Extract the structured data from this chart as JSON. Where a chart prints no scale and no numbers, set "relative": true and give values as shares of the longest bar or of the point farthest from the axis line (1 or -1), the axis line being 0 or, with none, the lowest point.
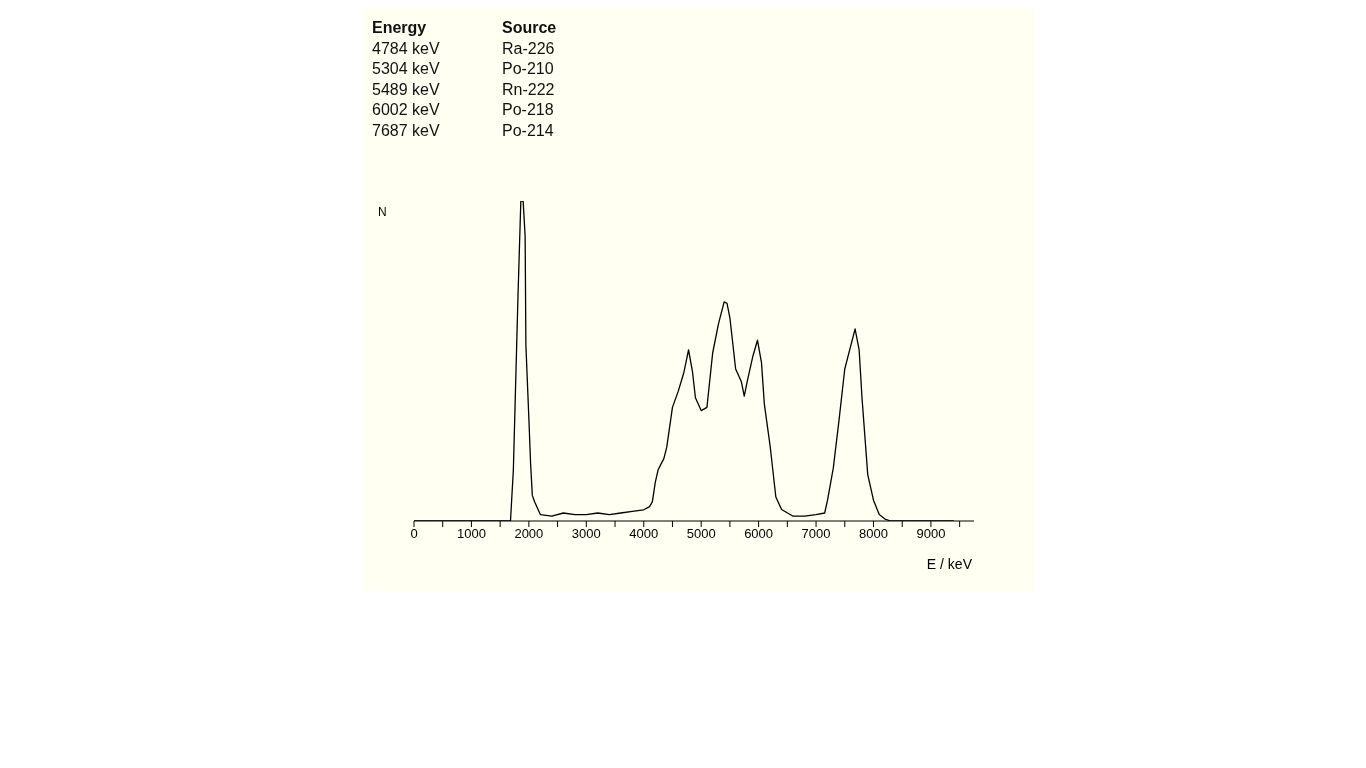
{
  "chart_data": {
    "type": "line",
    "xlabel": "E / keV",
    "ylabel": "N",
    "relative": true,
    "grid": false,
    "legend": false,
    "marker": "none",
    "line_style": "solid",
    "annotations": [
      "Energy",
      "Source",
      "4784 keV",
      "Ra-226",
      "5304 keV",
      "Po-210",
      "5489 keV",
      "Rn-222",
      "6002 keV",
      "Po-218",
      "7687 keV",
      "Po-214"
    ],
    "xlim": [
      0,
      9750
    ],
    "xticks": [
      0,
      {
        "value": 500,
        "label": null
      },
      1000,
      {
        "value": 1500,
        "label": null
      },
      2000,
      {
        "value": 2500,
        "label": null
      },
      3000,
      {
        "value": 3500,
        "label": null
      },
      4000,
      {
        "value": 4500,
        "label": null
      },
      5000,
      {
        "value": 5500,
        "label": null
      },
      6000,
      {
        "value": 6500,
        "label": null
      },
      7000,
      {
        "value": 7500,
        "label": null
      },
      8000,
      {
        "value": 8500,
        "label": null
      },
      9000,
      {
        "value": 9500,
        "label": null
      }
    ],
    "series": [
      {
        "color": "#000000",
        "x": [
          0,
          1600,
          1680,
          1730,
          1810,
          1860,
          1900,
          1935,
          1948,
          2000,
          2030,
          2060,
          2100,
          2200,
          2400,
          2600,
          2800,
          3000,
          3200,
          3400,
          3600,
          3800,
          4000,
          4100,
          4150,
          4200,
          4250,
          4350,
          4400,
          4500,
          4600,
          4700,
          4780,
          4850,
          4900,
          5000,
          5100,
          5200,
          5300,
          5400,
          5450,
          5500,
          5600,
          5700,
          5750,
          5800,
          5900,
          5980,
          6050,
          6100,
          6200,
          6300,
          6400,
          6600,
          6800,
          7000,
          7150,
          7200,
          7300,
          7400,
          7500,
          7600,
          7680,
          7750,
          7800,
          7900,
          8000,
          8100,
          8200,
          8300,
          9400
        ],
        "values": [
          0,
          0,
          0,
          0.16,
          0.7,
          1,
          1,
          0.89,
          0.55,
          0.32,
          0.18,
          0.08,
          0.06,
          0.02,
          0.015,
          0.025,
          0.02,
          0.02,
          0.025,
          0.02,
          0.025,
          0.03,
          0.035,
          0.045,
          0.06,
          0.12,
          0.16,
          0.195,
          0.23,
          0.355,
          0.405,
          0.465,
          0.535,
          0.465,
          0.385,
          0.345,
          0.355,
          0.525,
          0.615,
          0.685,
          0.68,
          0.635,
          0.475,
          0.435,
          0.39,
          0.435,
          0.515,
          0.565,
          0.495,
          0.365,
          0.235,
          0.075,
          0.036,
          0.015,
          0.015,
          0.02,
          0.025,
          0.065,
          0.165,
          0.315,
          0.475,
          0.545,
          0.6,
          0.535,
          0.385,
          0.145,
          0.065,
          0.02,
          0.006,
          0,
          0
        ]
      }
    ]
  }
}
